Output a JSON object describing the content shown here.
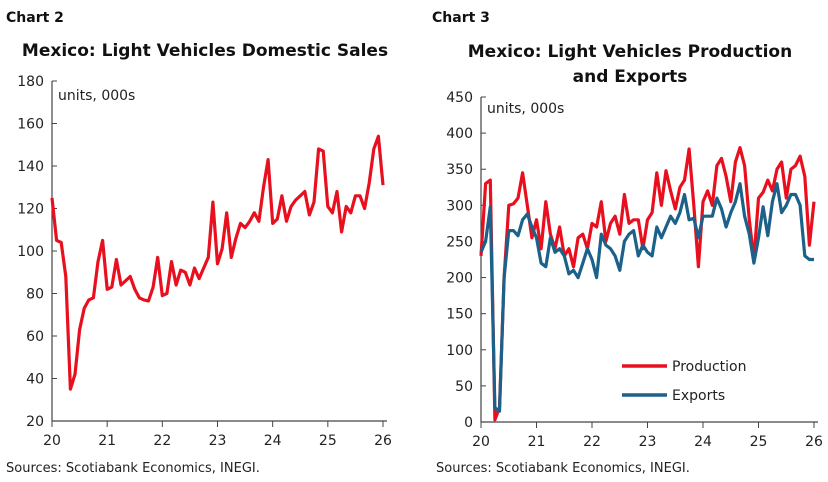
{
  "chart_data": [
    {
      "type": "line",
      "chart_number": "Chart 2",
      "title": "Mexico: Light Vehicles Domestic Sales",
      "units_label": "units, 000s",
      "source": "Sources: Scotiabank Economics, INEGI.",
      "x_ticks": [
        "20",
        "21",
        "22",
        "23",
        "24",
        "25",
        "26"
      ],
      "y_ticks": [
        "20",
        "40",
        "60",
        "80",
        "100",
        "120",
        "140",
        "160",
        "180"
      ],
      "ylim": [
        20,
        180
      ],
      "x_start": "2020-01",
      "frequency": "monthly",
      "grid": false,
      "series": [
        {
          "color": "#e8101e",
          "values": [
            125,
            105,
            104,
            88,
            35,
            42,
            63,
            73,
            77,
            78,
            95,
            105,
            82,
            83,
            96,
            84,
            86,
            88,
            82,
            78,
            77,
            76.5,
            83,
            97,
            79,
            80,
            95,
            84,
            91,
            90,
            84,
            92,
            87,
            92,
            97,
            123,
            94,
            101,
            118,
            97,
            106,
            113,
            111,
            114,
            118,
            114,
            130,
            143,
            113,
            115,
            126,
            114,
            121,
            124,
            126,
            128,
            117,
            123,
            148,
            147,
            121,
            118,
            128,
            109,
            121,
            118,
            126,
            126,
            120,
            132,
            148,
            154,
            131
          ]
        }
      ]
    },
    {
      "type": "line",
      "chart_number": "Chart 3",
      "title": [
        "Mexico: Light Vehicles Production",
        "and Exports"
      ],
      "units_label": "units, 000s",
      "source": "Sources: Scotiabank Economics, INEGI.",
      "x_ticks": [
        "20",
        "21",
        "22",
        "23",
        "24",
        "25",
        "26"
      ],
      "y_ticks": [
        "0",
        "50",
        "100",
        "150",
        "200",
        "250",
        "300",
        "350",
        "400",
        "450"
      ],
      "ylim": [
        0,
        450
      ],
      "x_start": "2020-01",
      "frequency": "monthly",
      "grid": false,
      "legend": "bottom-right",
      "series": [
        {
          "name": "Production",
          "color": "#e8101e",
          "values": [
            230,
            330,
            335,
            3,
            20,
            200,
            300,
            302,
            310,
            345,
            300,
            255,
            280,
            240,
            305,
            260,
            240,
            270,
            230,
            240,
            215,
            255,
            260,
            240,
            275,
            270,
            305,
            250,
            275,
            285,
            260,
            315,
            275,
            280,
            280,
            240,
            280,
            290,
            345,
            300,
            348,
            320,
            295,
            325,
            335,
            378,
            300,
            215,
            305,
            320,
            300,
            355,
            365,
            340,
            305,
            360,
            380,
            355,
            280,
            225,
            310,
            318,
            335,
            320,
            350,
            360,
            310,
            350,
            355,
            368,
            340,
            245,
            305
          ]
        },
        {
          "name": "Exports",
          "color": "#1b6189",
          "values": [
            235,
            250,
            298,
            20,
            15,
            200,
            265,
            265,
            258,
            280,
            288,
            270,
            255,
            220,
            215,
            255,
            235,
            240,
            230,
            205,
            210,
            200,
            220,
            240,
            225,
            200,
            260,
            245,
            240,
            230,
            210,
            250,
            260,
            265,
            230,
            245,
            235,
            230,
            270,
            255,
            270,
            285,
            275,
            290,
            315,
            280,
            282,
            255,
            285,
            285,
            285,
            310,
            295,
            270,
            290,
            305,
            330,
            285,
            260,
            220,
            255,
            298,
            258,
            305,
            330,
            290,
            300,
            315,
            315,
            300,
            230,
            225,
            225
          ]
        }
      ]
    }
  ]
}
